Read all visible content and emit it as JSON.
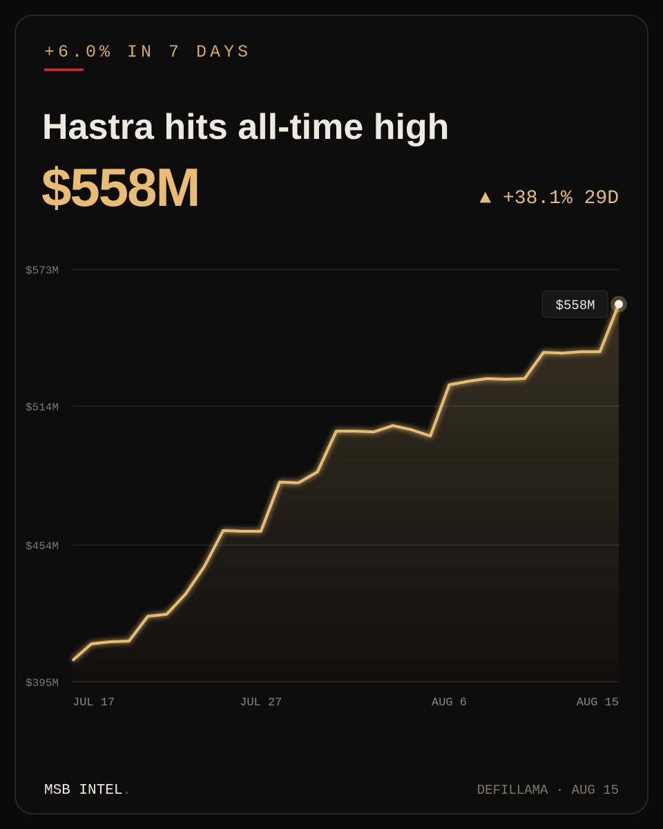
{
  "chart_data": {
    "type": "area",
    "kicker": "+6.0% IN 7 DAYS",
    "title": "Hastra hits all-time high",
    "headline_value": "$558M",
    "change": "▲ +38.1% 29D",
    "end_label": "$558M",
    "categories": [
      "JUL 17",
      null,
      null,
      null,
      null,
      null,
      null,
      null,
      null,
      null,
      "JUL 27",
      null,
      null,
      null,
      null,
      null,
      null,
      null,
      null,
      null,
      "AUG 6",
      null,
      null,
      null,
      null,
      null,
      null,
      null,
      null,
      "AUG 15"
    ],
    "values": [
      404.2,
      411.4,
      412.3,
      412.6,
      423.3,
      424.2,
      432.9,
      444.8,
      460.3,
      460.0,
      460.0,
      481.2,
      480.9,
      485.6,
      503.2,
      503.2,
      502.9,
      505.6,
      503.8,
      501.1,
      523.2,
      524.7,
      525.9,
      525.6,
      525.9,
      537.2,
      536.9,
      537.5,
      537.5,
      558
    ],
    "color": "#e8bd72",
    "ylim": [
      395,
      573
    ],
    "yticks": [
      {
        "value": 395,
        "label": "$395M"
      },
      {
        "value": 454,
        "label": "$454M"
      },
      {
        "value": 514,
        "label": "$514M"
      },
      {
        "value": 573,
        "label": "$573M"
      }
    ],
    "grid": true,
    "brand": "MSB INTEL",
    "brand_dot": ".",
    "source": "DEFILLAMA · AUG 15"
  }
}
